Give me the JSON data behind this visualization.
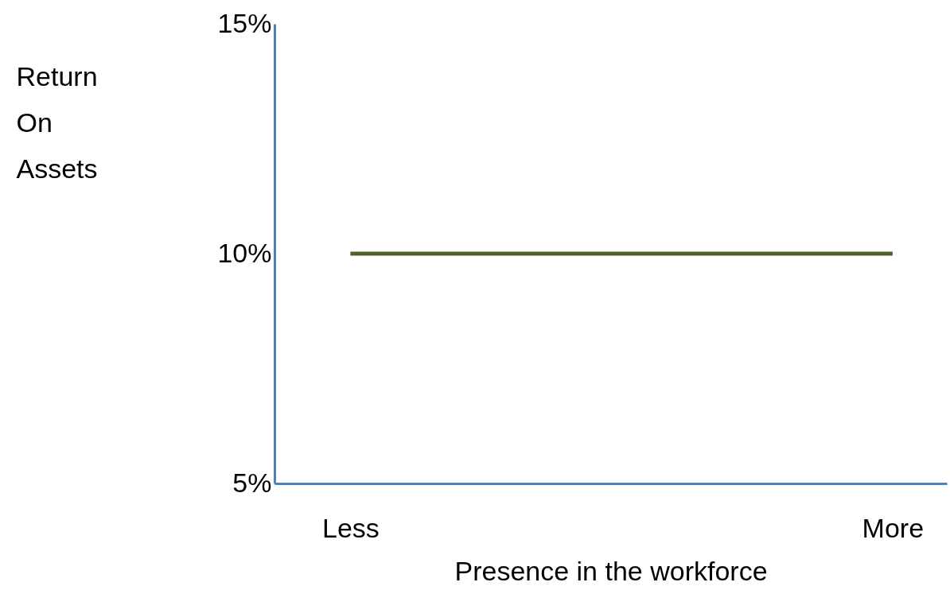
{
  "chart_data": {
    "type": "line",
    "xlabel": "Presence in the workforce",
    "ylabel": "Return On Assets",
    "categories": [
      "Less",
      "More"
    ],
    "series": [
      {
        "color": "#4f6228",
        "values": [
          10,
          10
        ]
      }
    ],
    "ylim": [
      5,
      15
    ],
    "yticks": [
      {
        "value": 5,
        "label": "5%"
      },
      {
        "value": 10,
        "label": "10%"
      },
      {
        "value": 15,
        "label": "15%"
      }
    ],
    "grid": false,
    "marker": "none",
    "line_style": "solid"
  }
}
